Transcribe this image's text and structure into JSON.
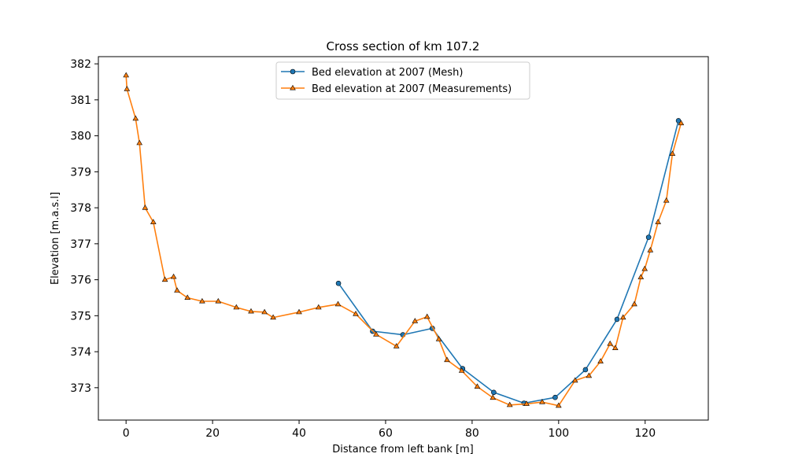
{
  "chart_data": {
    "type": "line",
    "title": "Cross section of km 107.2",
    "xlabel": "Distance from left bank [m]",
    "ylabel": "Elevation [m.a.s.l]",
    "xlim": [
      -6.4,
      134.6
    ],
    "ylim": [
      372.1,
      382.2
    ],
    "xticks": [
      0,
      20,
      40,
      60,
      80,
      100,
      120
    ],
    "yticks": [
      373,
      374,
      375,
      376,
      377,
      378,
      379,
      380,
      381,
      382
    ],
    "grid": false,
    "legend_position": "top-center",
    "series": [
      {
        "name": "Bed elevation at 2007 (Mesh)",
        "color": "#1f77b4",
        "marker": "circle",
        "x": [
          49.1,
          57.0,
          64.0,
          70.8,
          77.8,
          85.0,
          92.0,
          99.2,
          106.2,
          113.5,
          120.8,
          127.7
        ],
        "y": [
          375.9,
          374.57,
          374.47,
          374.65,
          373.53,
          372.87,
          372.57,
          372.73,
          373.5,
          374.9,
          377.18,
          380.42
        ]
      },
      {
        "name": "Bed elevation at 2007 (Measurements)",
        "color": "#ff7f0e",
        "marker": "triangle",
        "x": [
          0.0,
          0.2,
          2.2,
          3.1,
          4.4,
          6.3,
          9.0,
          11.0,
          11.8,
          14.2,
          17.6,
          21.3,
          25.5,
          28.9,
          32.0,
          34.0,
          40.0,
          44.5,
          49.0,
          53.1,
          57.8,
          62.5,
          66.8,
          69.6,
          72.3,
          74.2,
          77.6,
          81.2,
          84.8,
          88.7,
          92.6,
          96.2,
          100.0,
          103.8,
          107.0,
          109.7,
          111.9,
          113.1,
          114.9,
          117.5,
          119.0,
          119.9,
          121.2,
          123.0,
          124.9,
          126.3,
          128.3
        ],
        "y": [
          381.68,
          381.3,
          380.48,
          379.8,
          378.0,
          377.6,
          376.0,
          376.08,
          375.7,
          375.5,
          375.4,
          375.4,
          375.23,
          375.12,
          375.1,
          374.95,
          375.1,
          375.23,
          375.32,
          375.05,
          374.48,
          374.15,
          374.85,
          374.97,
          374.35,
          373.77,
          373.47,
          373.03,
          372.72,
          372.52,
          372.55,
          372.6,
          372.5,
          373.2,
          373.33,
          373.73,
          374.22,
          374.1,
          374.95,
          375.32,
          376.07,
          376.3,
          376.82,
          377.6,
          378.2,
          379.5,
          380.35
        ]
      }
    ]
  }
}
